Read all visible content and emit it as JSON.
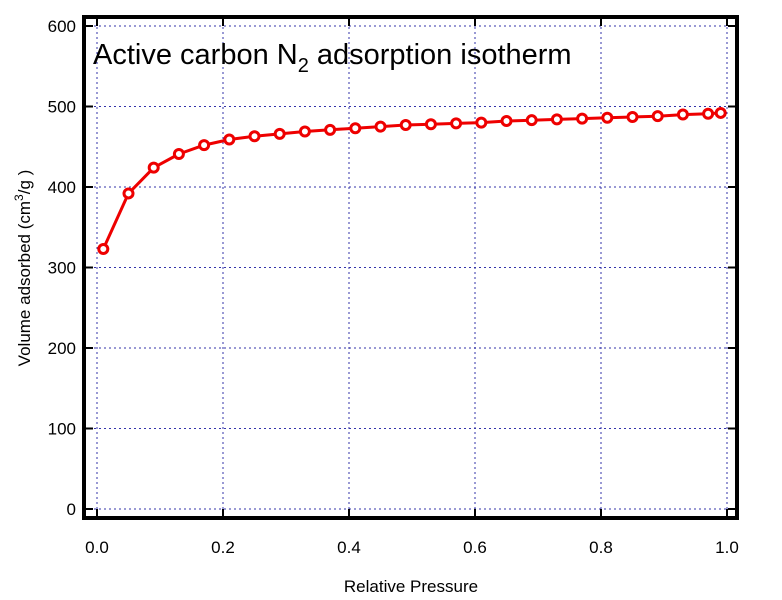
{
  "chart_data": {
    "type": "line",
    "title": {
      "prefix": "Active carbon N",
      "subscript": "2",
      "suffix": " adsorption isotherm"
    },
    "xlabel": "Relative Pressure",
    "ylabel": {
      "prefix": "Volume adsorbed (cm",
      "superscript": "3",
      "suffix": "/g )"
    },
    "xlim": [
      0,
      1.0
    ],
    "ylim": [
      0,
      600
    ],
    "xticks": [
      "0.0",
      "0.2",
      "0.4",
      "0.6",
      "0.8",
      "1.0"
    ],
    "yticks": [
      "0",
      "100",
      "200",
      "300",
      "400",
      "500",
      "600"
    ],
    "grid": true,
    "series": [
      {
        "color": "#ee0000",
        "marker": "open-circle",
        "x": [
          0.01,
          0.05,
          0.09,
          0.13,
          0.17,
          0.21,
          0.25,
          0.29,
          0.33,
          0.37,
          0.41,
          0.45,
          0.49,
          0.53,
          0.57,
          0.61,
          0.65,
          0.69,
          0.73,
          0.77,
          0.81,
          0.85,
          0.89,
          0.93,
          0.97,
          0.99
        ],
        "y": [
          323,
          392,
          424,
          441,
          452,
          459,
          463,
          466,
          469,
          471,
          473,
          475,
          477,
          478,
          479,
          480,
          482,
          483,
          484,
          485,
          486,
          487,
          488,
          490,
          491,
          492
        ]
      }
    ]
  }
}
